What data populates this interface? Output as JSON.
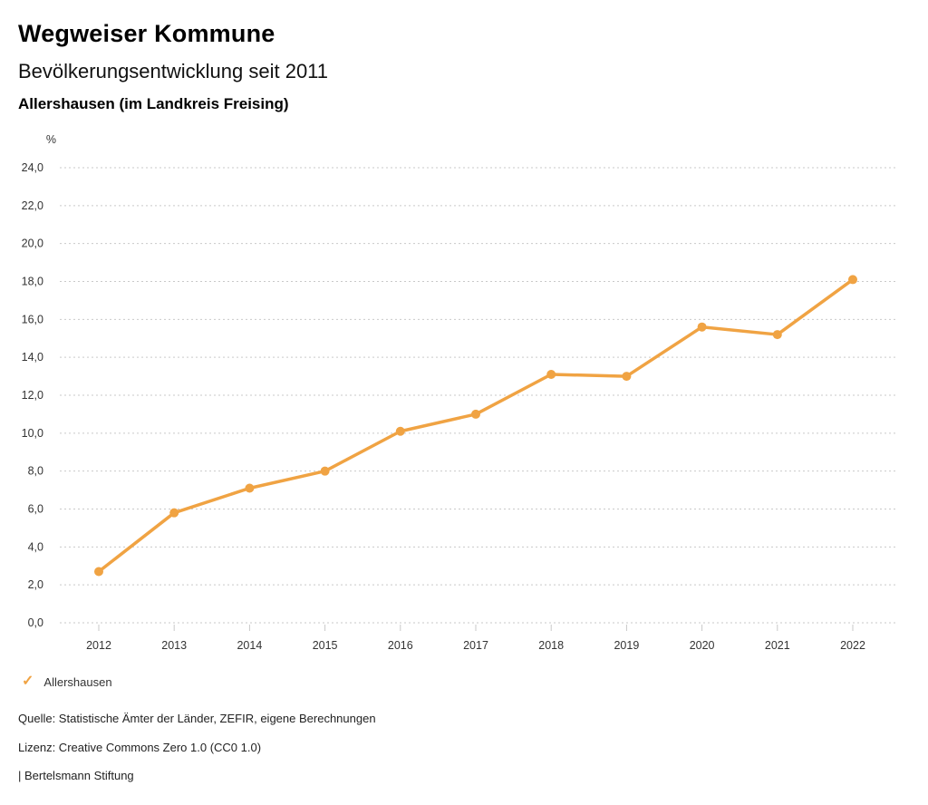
{
  "page": {
    "title": "Wegweiser Kommune",
    "subtitle": "Bevölkerungsentwicklung seit 2011",
    "region": "Allershausen (im Landkreis Freising)"
  },
  "chart_data": {
    "type": "line",
    "unit_label": "%",
    "x": [
      "2012",
      "2013",
      "2014",
      "2015",
      "2016",
      "2017",
      "2018",
      "2019",
      "2020",
      "2021",
      "2022"
    ],
    "series": [
      {
        "name": "Allershausen",
        "values": [
          2.7,
          5.8,
          7.1,
          8.0,
          10.1,
          11.0,
          13.1,
          13.0,
          15.6,
          15.2,
          18.1
        ],
        "color": "#F0A343"
      }
    ],
    "ylim": [
      0,
      24
    ],
    "ytick_step": 2,
    "ytick_labels": [
      "0,0",
      "2,0",
      "4,0",
      "6,0",
      "8,0",
      "10,0",
      "12,0",
      "14,0",
      "16,0",
      "18,0",
      "20,0",
      "22,0",
      "24,0"
    ],
    "grid": "horizontal-dotted",
    "legend_position": "bottom-left"
  },
  "legend": {
    "check_symbol": "✓",
    "label": "Allershausen"
  },
  "footer": {
    "source": "Quelle: Statistische Ämter der Länder, ZEFIR, eigene Berechnungen",
    "license": "Lizenz: Creative Commons Zero 1.0 (CC0 1.0)",
    "attribution": "| Bertelsmann Stiftung"
  },
  "colors": {
    "accent": "#F0A343",
    "grid": "#C9C9C9",
    "label": "#333333",
    "text": "#222222"
  }
}
